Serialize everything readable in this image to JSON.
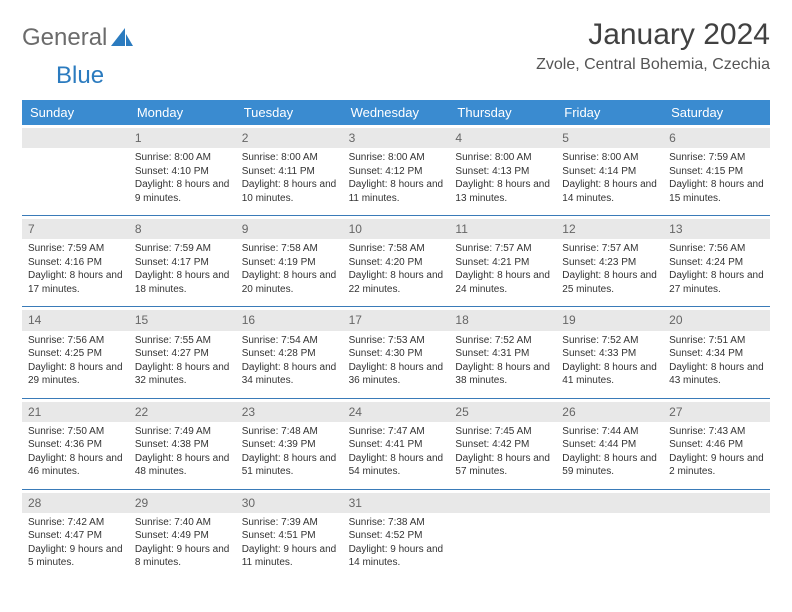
{
  "logo": {
    "text1": "General",
    "text2": "Blue"
  },
  "title": "January 2024",
  "location": "Zvole, Central Bohemia, Czechia",
  "colors": {
    "header_bg": "#3a8bd0",
    "header_text": "#ffffff",
    "daynum_bg": "#e8e8e8",
    "daynum_text": "#666666",
    "week_border": "#3a7bb8",
    "body_text": "#333333",
    "logo_gray": "#6b6b6b",
    "logo_blue": "#2b7bbf"
  },
  "dayNames": [
    "Sunday",
    "Monday",
    "Tuesday",
    "Wednesday",
    "Thursday",
    "Friday",
    "Saturday"
  ],
  "weeks": [
    [
      null,
      {
        "n": "1",
        "sr": "8:00 AM",
        "ss": "4:10 PM",
        "dl": "8 hours and 9 minutes."
      },
      {
        "n": "2",
        "sr": "8:00 AM",
        "ss": "4:11 PM",
        "dl": "8 hours and 10 minutes."
      },
      {
        "n": "3",
        "sr": "8:00 AM",
        "ss": "4:12 PM",
        "dl": "8 hours and 11 minutes."
      },
      {
        "n": "4",
        "sr": "8:00 AM",
        "ss": "4:13 PM",
        "dl": "8 hours and 13 minutes."
      },
      {
        "n": "5",
        "sr": "8:00 AM",
        "ss": "4:14 PM",
        "dl": "8 hours and 14 minutes."
      },
      {
        "n": "6",
        "sr": "7:59 AM",
        "ss": "4:15 PM",
        "dl": "8 hours and 15 minutes."
      }
    ],
    [
      {
        "n": "7",
        "sr": "7:59 AM",
        "ss": "4:16 PM",
        "dl": "8 hours and 17 minutes."
      },
      {
        "n": "8",
        "sr": "7:59 AM",
        "ss": "4:17 PM",
        "dl": "8 hours and 18 minutes."
      },
      {
        "n": "9",
        "sr": "7:58 AM",
        "ss": "4:19 PM",
        "dl": "8 hours and 20 minutes."
      },
      {
        "n": "10",
        "sr": "7:58 AM",
        "ss": "4:20 PM",
        "dl": "8 hours and 22 minutes."
      },
      {
        "n": "11",
        "sr": "7:57 AM",
        "ss": "4:21 PM",
        "dl": "8 hours and 24 minutes."
      },
      {
        "n": "12",
        "sr": "7:57 AM",
        "ss": "4:23 PM",
        "dl": "8 hours and 25 minutes."
      },
      {
        "n": "13",
        "sr": "7:56 AM",
        "ss": "4:24 PM",
        "dl": "8 hours and 27 minutes."
      }
    ],
    [
      {
        "n": "14",
        "sr": "7:56 AM",
        "ss": "4:25 PM",
        "dl": "8 hours and 29 minutes."
      },
      {
        "n": "15",
        "sr": "7:55 AM",
        "ss": "4:27 PM",
        "dl": "8 hours and 32 minutes."
      },
      {
        "n": "16",
        "sr": "7:54 AM",
        "ss": "4:28 PM",
        "dl": "8 hours and 34 minutes."
      },
      {
        "n": "17",
        "sr": "7:53 AM",
        "ss": "4:30 PM",
        "dl": "8 hours and 36 minutes."
      },
      {
        "n": "18",
        "sr": "7:52 AM",
        "ss": "4:31 PM",
        "dl": "8 hours and 38 minutes."
      },
      {
        "n": "19",
        "sr": "7:52 AM",
        "ss": "4:33 PM",
        "dl": "8 hours and 41 minutes."
      },
      {
        "n": "20",
        "sr": "7:51 AM",
        "ss": "4:34 PM",
        "dl": "8 hours and 43 minutes."
      }
    ],
    [
      {
        "n": "21",
        "sr": "7:50 AM",
        "ss": "4:36 PM",
        "dl": "8 hours and 46 minutes."
      },
      {
        "n": "22",
        "sr": "7:49 AM",
        "ss": "4:38 PM",
        "dl": "8 hours and 48 minutes."
      },
      {
        "n": "23",
        "sr": "7:48 AM",
        "ss": "4:39 PM",
        "dl": "8 hours and 51 minutes."
      },
      {
        "n": "24",
        "sr": "7:47 AM",
        "ss": "4:41 PM",
        "dl": "8 hours and 54 minutes."
      },
      {
        "n": "25",
        "sr": "7:45 AM",
        "ss": "4:42 PM",
        "dl": "8 hours and 57 minutes."
      },
      {
        "n": "26",
        "sr": "7:44 AM",
        "ss": "4:44 PM",
        "dl": "8 hours and 59 minutes."
      },
      {
        "n": "27",
        "sr": "7:43 AM",
        "ss": "4:46 PM",
        "dl": "9 hours and 2 minutes."
      }
    ],
    [
      {
        "n": "28",
        "sr": "7:42 AM",
        "ss": "4:47 PM",
        "dl": "9 hours and 5 minutes."
      },
      {
        "n": "29",
        "sr": "7:40 AM",
        "ss": "4:49 PM",
        "dl": "9 hours and 8 minutes."
      },
      {
        "n": "30",
        "sr": "7:39 AM",
        "ss": "4:51 PM",
        "dl": "9 hours and 11 minutes."
      },
      {
        "n": "31",
        "sr": "7:38 AM",
        "ss": "4:52 PM",
        "dl": "9 hours and 14 minutes."
      },
      null,
      null,
      null
    ]
  ],
  "labels": {
    "sunrise": "Sunrise:",
    "sunset": "Sunset:",
    "daylight": "Daylight:"
  }
}
